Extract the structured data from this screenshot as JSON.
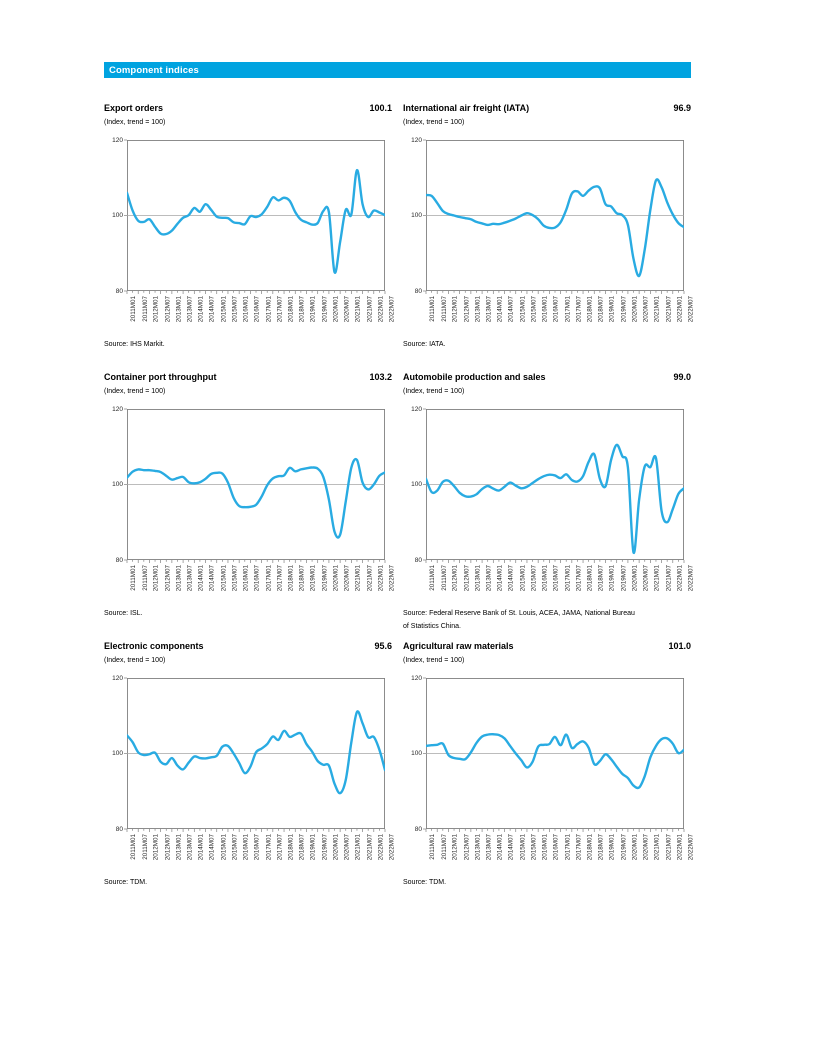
{
  "header": {
    "title": "Component indices"
  },
  "styles": {
    "header_bar": "#00A3E0",
    "header_text": "#FFFFFF",
    "line_color": "#29ABE2",
    "plot_border": "#808080",
    "gridline": "#A6A6A6",
    "tick": "#808080"
  },
  "axis": {
    "ylim": [
      80,
      120
    ],
    "y_ticks": [
      "120",
      "100",
      "80"
    ],
    "gridline_value": 100,
    "x_labels": [
      "2011M01",
      "2011M07",
      "2012M01",
      "2012M07",
      "2013M01",
      "2013M07",
      "2014M01",
      "2014M07",
      "2015M01",
      "2015M07",
      "2016M01",
      "2016M07",
      "2017M01",
      "2017M07",
      "2018M01",
      "2018M07",
      "2019M01",
      "2019M07",
      "2020M01",
      "2020M07",
      "2021M01",
      "2021M07",
      "2022M01",
      "2022M07"
    ]
  },
  "chart_data": [
    {
      "type": "line",
      "title": "Export orders",
      "headline_value": "100.1",
      "subtitle": "(Index, trend = 100)",
      "source": "Source:  IHS Markit.",
      "ylim": [
        80,
        120
      ],
      "sampling": "quarterly 2011M01-2022M07 (estimated from plot)",
      "values": [
        106.0,
        101.3,
        98.6,
        98.3,
        99.0,
        97.0,
        95.2,
        95.1,
        96.0,
        97.8,
        99.4,
        100.1,
        102.0,
        101.0,
        103.0,
        101.5,
        99.7,
        99.4,
        99.3,
        98.2,
        98.0,
        97.7,
        99.8,
        99.6,
        100.3,
        102.3,
        104.8,
        104.0,
        104.7,
        103.9,
        100.9,
        98.9,
        98.2,
        97.6,
        98.0,
        101.2,
        100.9,
        85.0,
        93.0,
        101.5,
        100.3,
        112.0,
        103.0,
        99.6,
        101.3,
        100.8,
        100.1
      ]
    },
    {
      "type": "line",
      "title": "International air freight (IATA)",
      "headline_value": "96.9",
      "subtitle": "(Index, trend = 100)",
      "source": "Source: IATA.",
      "ylim": [
        80,
        120
      ],
      "sampling": "quarterly 2011M01-2022M07 (estimated from plot)",
      "values": [
        105.4,
        105.2,
        103.3,
        101.2,
        100.4,
        100.0,
        99.6,
        99.3,
        99.0,
        98.3,
        97.9,
        97.5,
        97.8,
        97.7,
        98.1,
        98.6,
        99.2,
        100.0,
        100.6,
        100.1,
        99.0,
        97.3,
        96.7,
        96.8,
        98.2,
        101.5,
        105.8,
        106.4,
        105.2,
        106.6,
        107.6,
        107.2,
        103.0,
        102.4,
        100.6,
        100.1,
        97.5,
        88.5,
        84.0,
        91.0,
        101.5,
        109.3,
        107.5,
        103.5,
        100.3,
        98.0,
        96.9
      ]
    },
    {
      "type": "line",
      "title": "Container port throughput",
      "headline_value": "103.2",
      "subtitle": "(Index, trend = 100)",
      "source": "Source: ISL.",
      "ylim": [
        80,
        120
      ],
      "sampling": "quarterly 2011M01-2022M07 (estimated from plot)",
      "values": [
        101.8,
        103.4,
        104.0,
        103.8,
        103.8,
        103.6,
        103.3,
        102.3,
        101.3,
        101.7,
        102.0,
        100.6,
        100.3,
        100.6,
        101.5,
        102.8,
        103.1,
        102.9,
        100.5,
        96.5,
        94.3,
        94.0,
        94.1,
        94.6,
        96.8,
        99.8,
        101.6,
        102.2,
        102.4,
        104.4,
        103.5,
        104.0,
        104.3,
        104.5,
        104.2,
        102.0,
        96.0,
        87.5,
        86.7,
        95.5,
        104.5,
        106.5,
        100.5,
        98.7,
        100.0,
        102.3,
        103.2
      ]
    },
    {
      "type": "line",
      "title": "Automobile production and sales",
      "headline_value": "99.0",
      "subtitle": "(Index, trend = 100)",
      "source": "Source: Federal Reserve Bank of St. Louis, ACEA, JAMA, National Bureau\nof Statistics China.",
      "ylim": [
        80,
        120
      ],
      "sampling": "quarterly 2011M01-2022M07 (estimated from plot)",
      "values": [
        101.5,
        98.0,
        98.4,
        100.7,
        101.0,
        99.6,
        97.8,
        96.9,
        96.8,
        97.4,
        98.8,
        99.6,
        98.9,
        98.4,
        99.4,
        100.5,
        99.7,
        99.0,
        99.4,
        100.4,
        101.4,
        102.2,
        102.6,
        102.4,
        101.7,
        102.7,
        101.2,
        100.8,
        102.2,
        106.0,
        108.0,
        101.5,
        99.5,
        106.5,
        110.5,
        107.5,
        104.5,
        82.0,
        96.0,
        104.8,
        104.6,
        107.0,
        93.0,
        90.0,
        93.5,
        97.5,
        99.0
      ]
    },
    {
      "type": "line",
      "title": "Electronic components",
      "headline_value": "95.6",
      "subtitle": "(Index, trend = 100)",
      "source": "Source:  TDM.",
      "ylim": [
        80,
        120
      ],
      "sampling": "quarterly 2011M01-2022M07 (estimated from plot)",
      "values": [
        104.8,
        103.0,
        100.3,
        99.6,
        99.8,
        100.2,
        97.8,
        97.2,
        98.8,
        96.8,
        95.8,
        97.6,
        99.2,
        98.8,
        98.7,
        99.0,
        99.4,
        101.8,
        102.0,
        100.0,
        97.5,
        94.8,
        96.5,
        100.3,
        101.3,
        102.5,
        104.5,
        103.6,
        106.0,
        104.4,
        105.0,
        105.3,
        102.5,
        100.5,
        98.0,
        97.0,
        96.8,
        92.0,
        89.5,
        93.0,
        103.0,
        111.0,
        108.0,
        104.3,
        104.4,
        101.0,
        95.6
      ]
    },
    {
      "type": "line",
      "title": "Agricultural raw materials",
      "headline_value": "101.0",
      "subtitle": "(Index, trend = 100)",
      "source": "Source: TDM.",
      "ylim": [
        80,
        120
      ],
      "sampling": "quarterly 2011M01-2022M07 (estimated from plot)",
      "values": [
        102.0,
        102.2,
        102.3,
        102.6,
        99.6,
        98.8,
        98.6,
        98.5,
        100.3,
        102.8,
        104.5,
        105.0,
        105.1,
        104.9,
        104.0,
        102.0,
        100.0,
        98.2,
        96.3,
        97.8,
        101.8,
        102.3,
        102.5,
        104.4,
        102.2,
        105.0,
        101.5,
        102.5,
        103.2,
        101.5,
        97.2,
        98.0,
        99.8,
        98.5,
        96.5,
        94.6,
        93.5,
        91.5,
        91.0,
        94.0,
        99.0,
        102.0,
        103.8,
        104.0,
        102.6,
        100.1,
        101.0
      ]
    }
  ]
}
